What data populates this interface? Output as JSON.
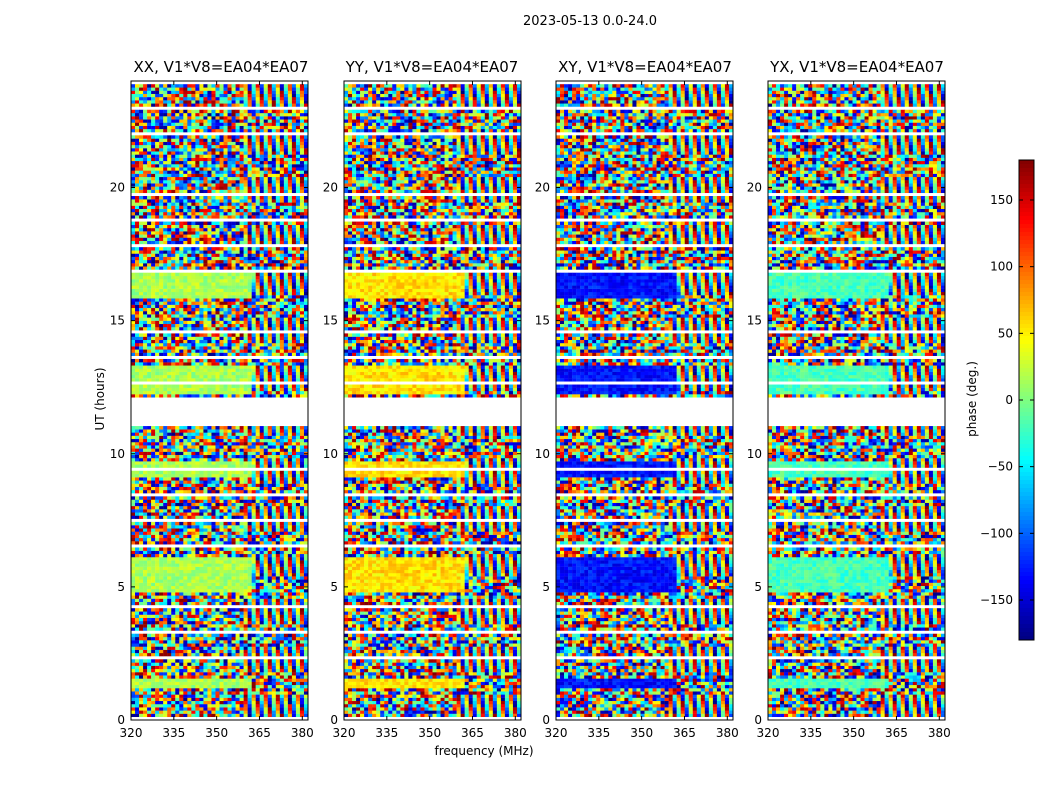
{
  "figure": {
    "suptitle": "2023-05-13 0.0-24.0",
    "xlabel": "frequency (MHz)",
    "ylabel": "UT (hours)",
    "colorbar_label": "phase (deg.)"
  },
  "chart_data": {
    "type": "heatmap",
    "title": "2023-05-13 0.0-24.0",
    "xlabel": "frequency (MHz)",
    "ylabel": "UT (hours)",
    "xlim": [
      320,
      382
    ],
    "ylim": [
      0,
      24
    ],
    "xticks": [
      320,
      335,
      350,
      365,
      380
    ],
    "yticks": [
      0,
      5,
      10,
      15,
      20
    ],
    "colorbar": {
      "label": "phase (deg.)",
      "range": [
        -180,
        180
      ],
      "ticks": [
        150,
        100,
        50,
        0,
        -50,
        -100,
        -150
      ],
      "colormap": "jet"
    },
    "panels": [
      {
        "title": "XX, V1*V8=EA04*EA07",
        "calibrator_phase_deg": 15
      },
      {
        "title": "YY, V1*V8=EA04*EA07",
        "calibrator_phase_deg": 55
      },
      {
        "title": "XY, V1*V8=EA04*EA07",
        "calibrator_phase_deg": -130
      },
      {
        "title": "YX, V1*V8=EA04*EA07",
        "calibrator_phase_deg": -20
      }
    ],
    "flagged_gap_hours": [
      [
        11.0,
        12.1
      ]
    ]
  }
}
